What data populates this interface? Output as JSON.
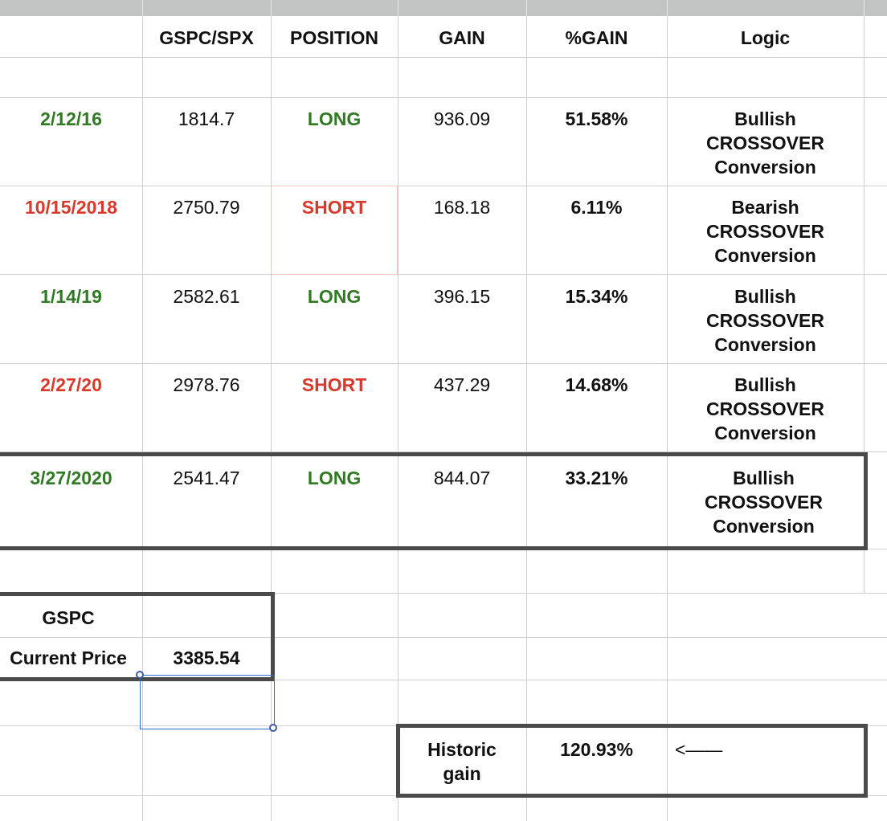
{
  "header": {
    "col_b": "GSPC/SPX",
    "col_c": "POSITION",
    "col_d": "GAIN",
    "col_e": "%GAIN",
    "col_f": "Logic"
  },
  "rows": [
    {
      "date": "2/12/16",
      "price": "1814.7",
      "position": "LONG",
      "gain": "936.09",
      "pct": "51.58%",
      "logic1": "Bullish",
      "logic2": "CROSSOVER",
      "logic3": "Conversion"
    },
    {
      "date": "10/15/2018",
      "price": "2750.79",
      "position": "SHORT",
      "gain": "168.18",
      "pct": "6.11%",
      "logic1": "Bearish",
      "logic2": "CROSSOVER",
      "logic3": "Conversion"
    },
    {
      "date": "1/14/19",
      "price": "2582.61",
      "position": "LONG",
      "gain": "396.15",
      "pct": "15.34%",
      "logic1": "Bullish",
      "logic2": "CROSSOVER",
      "logic3": "Conversion"
    },
    {
      "date": "2/27/20",
      "price": "2978.76",
      "position": "SHORT",
      "gain": "437.29",
      "pct": "14.68%",
      "logic1": "Bullish",
      "logic2": "CROSSOVER",
      "logic3": "Conversion"
    },
    {
      "date": "3/27/2020",
      "price": "2541.47",
      "position": "LONG",
      "gain": "844.07",
      "pct": "33.21%",
      "logic1": "Bullish",
      "logic2": "CROSSOVER",
      "logic3": "Conversion"
    }
  ],
  "current": {
    "label_top": "GSPC",
    "label": "Current Price",
    "value": "3385.54"
  },
  "historic": {
    "label1": "Historic",
    "label2": "gain",
    "value": "120.93%",
    "arrow": "<——"
  },
  "colors": {
    "long": "#2f7a23",
    "short": "#d9382a",
    "grid": "#cfcfcf",
    "box_border": "#4a4a4a",
    "selection": "#2f6fd6"
  }
}
